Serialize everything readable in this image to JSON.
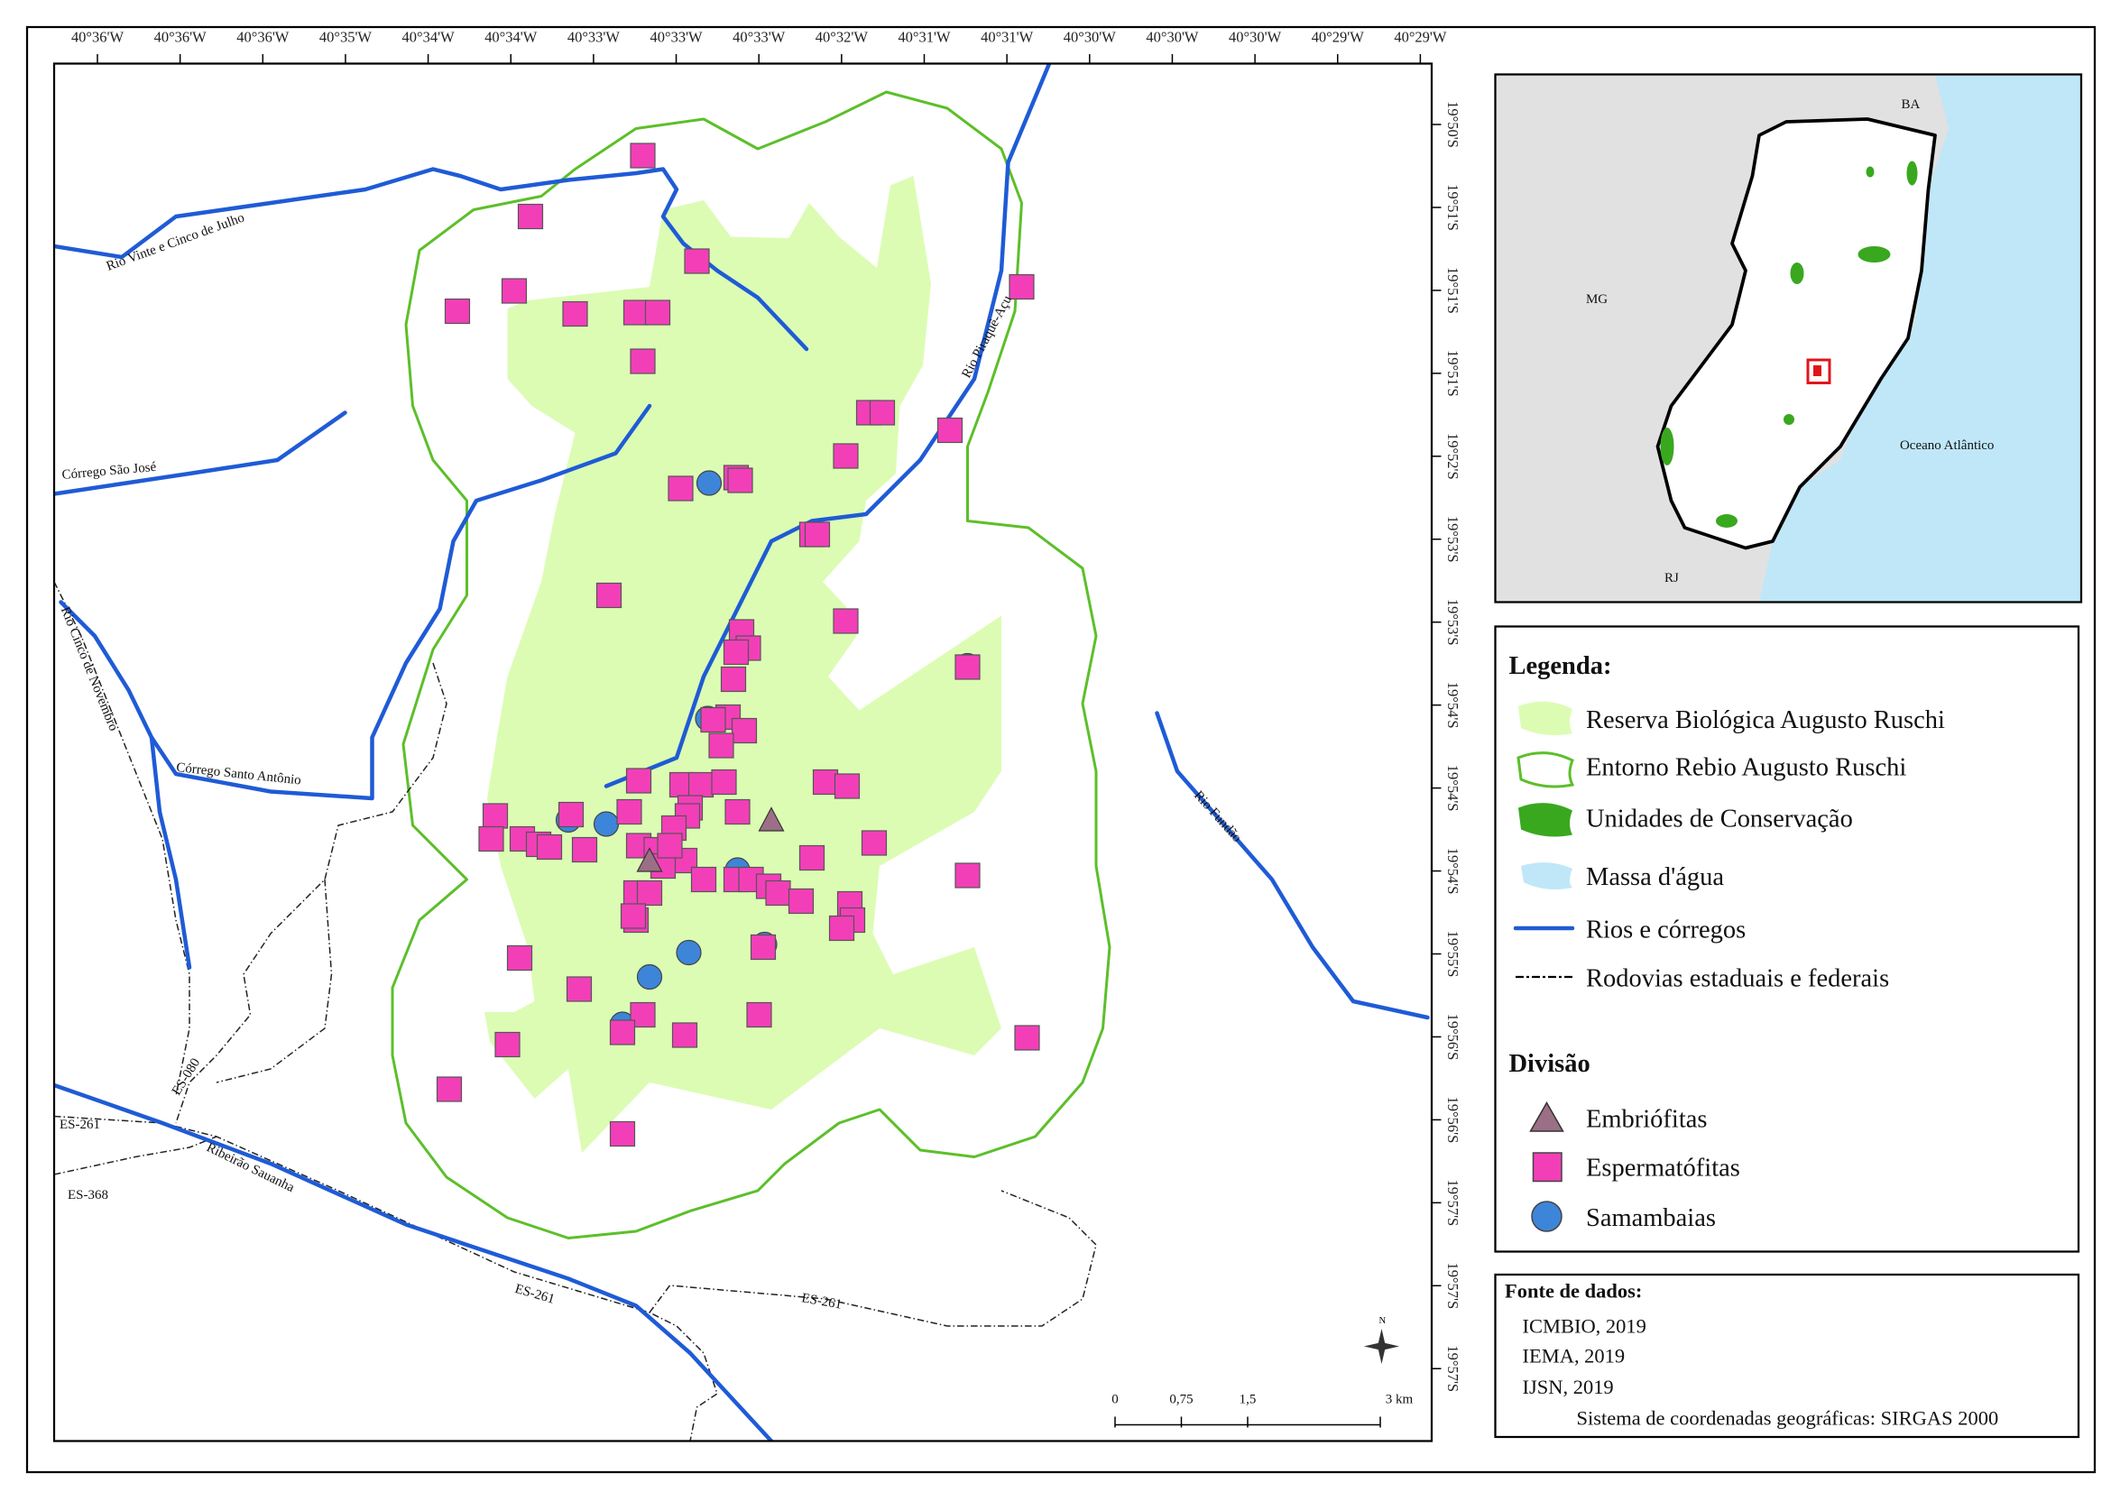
{
  "map": {
    "longitude_labels": [
      "40°36'W",
      "40°36'W",
      "40°36'W",
      "40°35'W",
      "40°34'W",
      "40°34'W",
      "40°33'W",
      "40°33'W",
      "40°33'W",
      "40°32'W",
      "40°31'W",
      "40°31'W",
      "40°30'W",
      "40°30'W",
      "40°30'W",
      "40°29'W",
      "40°29'W"
    ],
    "latitude_labels": [
      "19°50'S",
      "19°51'S",
      "19°51'S",
      "19°51'S",
      "19°52'S",
      "19°53'S",
      "19°53'S",
      "19°54'S",
      "19°54'S",
      "19°54'S",
      "19°55'S",
      "19°56'S",
      "19°56'S",
      "19°57'S",
      "19°57'S",
      "19°57'S"
    ],
    "rivers": [
      "Rio Vinte e Cinco de Julho",
      "Córrego São José",
      "Rio Piraquê-Açu",
      "Rio Cinco de Novembro",
      "Córrego Santo Antônio",
      "Rio Fundão",
      "Ribeirão Sauanha"
    ],
    "roads": [
      "ES-080",
      "ES-261",
      "ES-368",
      "ES-261",
      "ES-261"
    ],
    "north": "N",
    "scale_bar": [
      "0",
      "0,75",
      "1,5",
      "3 km"
    ]
  },
  "inset": {
    "labels": [
      "BA",
      "MG",
      "RJ",
      "Oceano Atlântico"
    ]
  },
  "legend": {
    "title": "Legenda:",
    "items": [
      "Reserva Biológica Augusto Ruschi",
      "Entorno Rebio Augusto Ruschi",
      "Unidades de Conservação",
      "Massa d'água",
      "Rios e córregos",
      "Rodovias estaduais e federais"
    ],
    "division_title": "Divisão",
    "division_items": [
      "Embriófitas",
      "Espermatófitas",
      "Samambaias"
    ]
  },
  "sources": {
    "title": "Fonte de dados:",
    "items": [
      "ICMBIO, 2019",
      "IEMA, 2019",
      "IJSN, 2019"
    ],
    "crs": "Sistema de coordenadas geográficas: SIRGAS 2000"
  }
}
